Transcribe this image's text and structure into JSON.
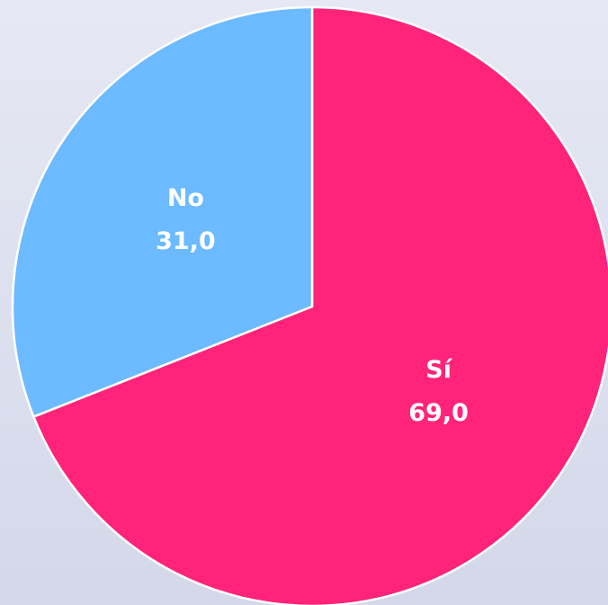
{
  "chart_data": {
    "type": "pie",
    "categories": [
      "Sí",
      "No"
    ],
    "values": [
      69.0,
      31.0
    ],
    "value_labels": [
      "69,0",
      "31,0"
    ],
    "colors": [
      "#ff247a",
      "#6cbaff"
    ]
  }
}
